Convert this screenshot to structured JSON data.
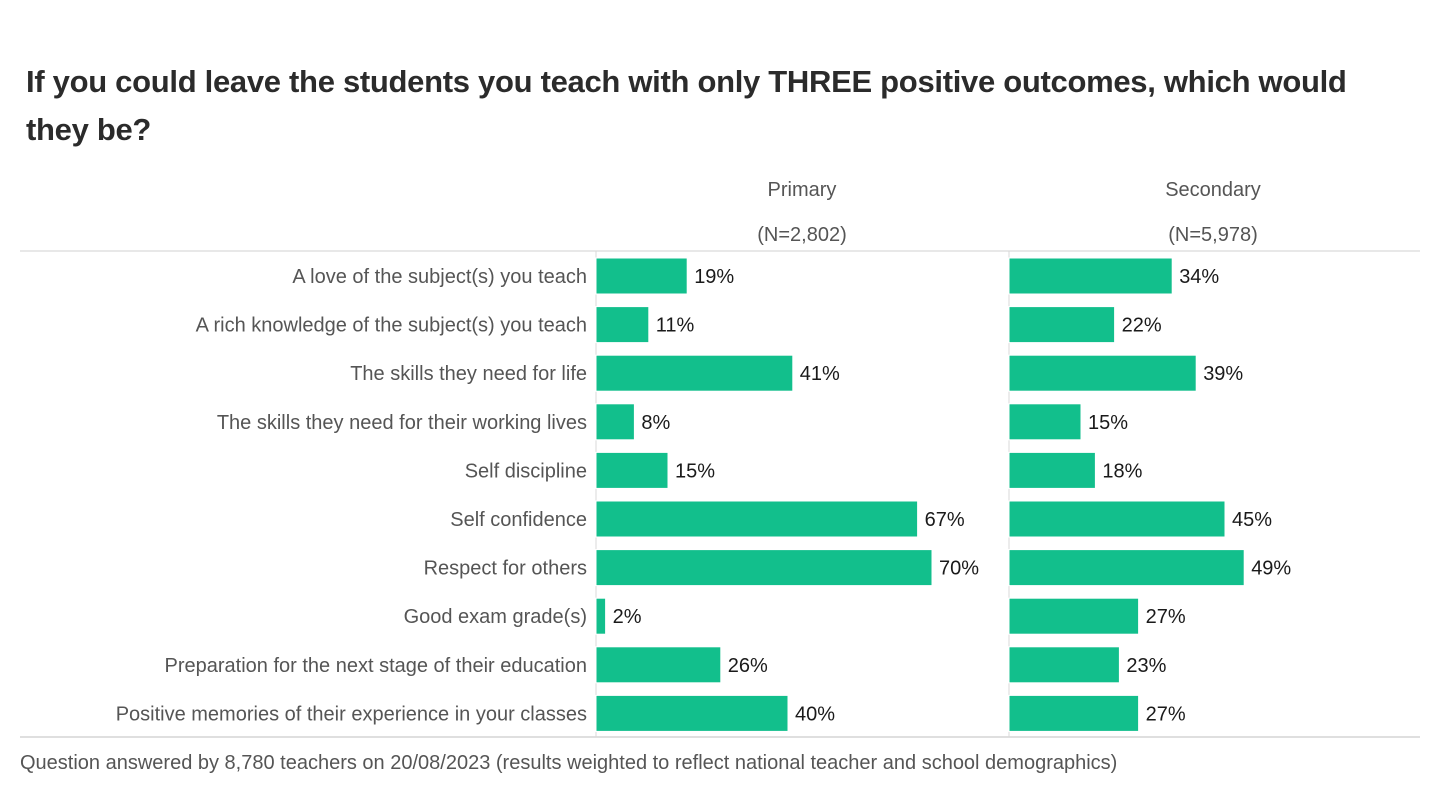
{
  "chart_data": {
    "type": "bar",
    "orientation": "horizontal",
    "title": "If you could leave the students you teach with only THREE positive outcomes, which would they be?",
    "categories": [
      "A love of the subject(s) you teach",
      "A rich knowledge of the subject(s) you teach",
      "The skills they need for life",
      "The skills they need for their working lives",
      "Self discipline",
      "Self confidence",
      "Respect for others",
      "Good exam grade(s)",
      "Preparation for the next stage of their education",
      "Positive memories of their experience in your classes"
    ],
    "series": [
      {
        "name": "Primary",
        "n_label": "(N=2,802)",
        "values": [
          19,
          11,
          41,
          8,
          15,
          67,
          70,
          2,
          26,
          40
        ],
        "labels": [
          "19%",
          "11%",
          "41%",
          "8%",
          "15%",
          "67%",
          "70%",
          "2%",
          "26%",
          "40%"
        ]
      },
      {
        "name": "Secondary",
        "n_label": "(N=5,978)",
        "values": [
          34,
          22,
          39,
          15,
          18,
          45,
          49,
          27,
          23,
          27
        ],
        "labels": [
          "34%",
          "22%",
          "39%",
          "15%",
          "18%",
          "45%",
          "49%",
          "27%",
          "23%",
          "27%"
        ]
      }
    ],
    "unit": "%",
    "xlim": [
      0,
      100
    ],
    "bar_color": "#12bf8c",
    "footnote": "Question answered by 8,780 teachers on 20/08/2023 (results weighted to reflect national teacher and school demographics)"
  }
}
